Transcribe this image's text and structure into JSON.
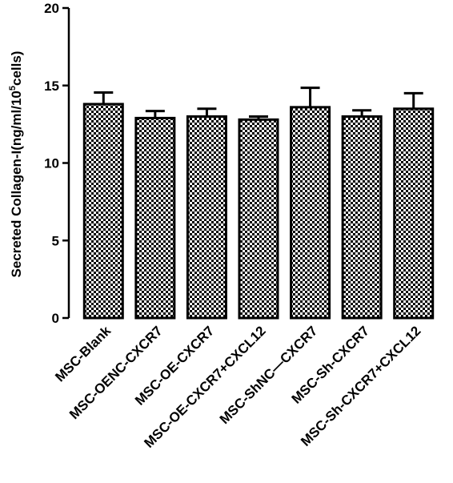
{
  "chart_data": {
    "type": "bar",
    "categories": [
      "MSC-Blank",
      "MSC-OENC-CXCR7",
      "MSC-OE-CXCR7",
      "MSC-OE-CXCR7+CXCL12",
      "MSC-ShNC—CXCR7",
      "MSC-Sh-CXCR7",
      "MSC-Sh-CXCR7+CXCL12"
    ],
    "values": [
      13.8,
      12.9,
      13.0,
      12.8,
      13.6,
      13.0,
      13.5
    ],
    "errors": [
      0.75,
      0.45,
      0.5,
      0.2,
      1.25,
      0.4,
      1.0
    ],
    "ylim": [
      0,
      20
    ],
    "yticks": [
      0,
      5,
      10,
      15,
      20
    ],
    "ytick_labels": [
      "0",
      "5",
      "10",
      "15",
      "20"
    ],
    "ylabel": {
      "prefix": "Secreted Collagen-I(ng/ml/10",
      "superscript": "5",
      "suffix": "cells)"
    },
    "xlabel": "",
    "title": "",
    "fill_pattern": "checkerboard",
    "bar_color": "#000000",
    "background": "#ffffff"
  }
}
